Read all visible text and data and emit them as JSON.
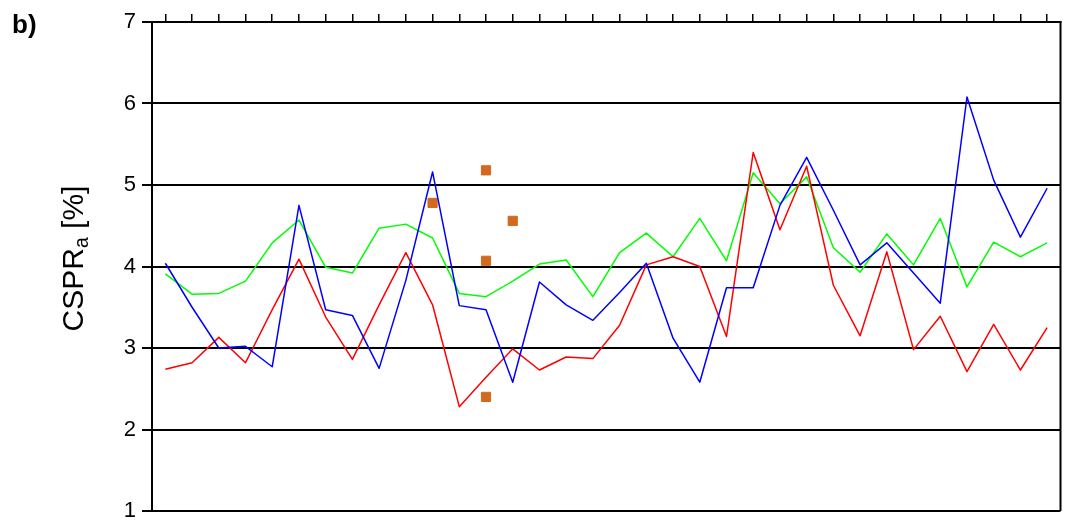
{
  "chart_data": {
    "type": "line",
    "ylabel": "CSPR$_{a}$ [%]",
    "annotations": [
      "b)"
    ],
    "categories": [
      null,
      null,
      null,
      null,
      null,
      null,
      null,
      null,
      null,
      null,
      null,
      null,
      null,
      null,
      null,
      null,
      null,
      null,
      null,
      null,
      null,
      null,
      null,
      null,
      null,
      null,
      null,
      null,
      null,
      null,
      null,
      null,
      null,
      null
    ],
    "ylim": [
      1,
      7
    ],
    "yticks": [
      1,
      2,
      3,
      4,
      5,
      6,
      7
    ],
    "grid": "y",
    "tick_labels": "y",
    "legend": false,
    "marker": "none",
    "line_style": "solid",
    "series": [
      {
        "color": "#0000ff",
        "values": [
          4.04,
          3.5,
          3.0,
          3.02,
          2.77,
          4.75,
          3.47,
          3.4,
          2.75,
          3.83,
          5.16,
          3.52,
          3.47,
          2.58,
          3.81,
          3.53,
          3.34,
          3.68,
          4.04,
          3.12,
          2.58,
          3.74,
          3.74,
          4.75,
          5.34,
          4.69,
          4.02,
          4.29,
          3.92,
          3.55,
          6.08,
          5.06,
          4.36,
          4.96
        ]
      },
      {
        "color": "#ff0000",
        "values": [
          2.74,
          2.82,
          3.13,
          2.82,
          3.47,
          4.09,
          3.38,
          2.86,
          3.53,
          4.17,
          3.53,
          2.28,
          2.64,
          2.99,
          2.73,
          2.89,
          2.87,
          3.28,
          4.02,
          4.12,
          4.0,
          3.14,
          5.4,
          4.45,
          5.23,
          3.77,
          3.15,
          4.18,
          2.98,
          3.39,
          2.71,
          3.29,
          2.73,
          3.25
        ]
      },
      {
        "color": "#00ff00",
        "values": [
          3.91,
          3.66,
          3.67,
          3.82,
          4.29,
          4.57,
          3.99,
          3.92,
          4.47,
          4.52,
          4.35,
          3.67,
          3.63,
          3.82,
          4.03,
          4.08,
          3.63,
          4.17,
          4.41,
          4.12,
          4.59,
          4.07,
          5.15,
          4.77,
          5.1,
          4.23,
          3.93,
          4.4,
          4.02,
          4.59,
          3.75,
          4.3,
          4.12,
          4.29
        ]
      },
      {
        "type": "scatter",
        "marker": "square",
        "color": "#d2691e",
        "values": [
          null,
          null,
          null,
          null,
          null,
          null,
          null,
          null,
          null,
          null,
          4.78,
          null,
          5.18,
          4.56,
          null,
          null,
          null,
          null,
          null,
          null,
          null,
          null,
          null,
          null,
          null,
          null,
          null,
          null,
          null,
          null,
          null,
          null,
          null,
          null
        ]
      },
      {
        "type": "scatter",
        "marker": "square",
        "color": "#d2691e",
        "values": [
          null,
          null,
          null,
          null,
          null,
          null,
          null,
          null,
          null,
          null,
          null,
          null,
          4.07,
          null,
          null,
          null,
          null,
          null,
          null,
          null,
          null,
          null,
          null,
          null,
          null,
          null,
          null,
          null,
          null,
          null,
          null,
          null,
          null,
          null
        ]
      },
      {
        "type": "scatter",
        "marker": "square",
        "color": "#d2691e",
        "values": [
          null,
          null,
          null,
          null,
          null,
          null,
          null,
          null,
          null,
          null,
          null,
          null,
          2.4,
          null,
          null,
          null,
          null,
          null,
          null,
          null,
          null,
          null,
          null,
          null,
          null,
          null,
          null,
          null,
          null,
          null,
          null,
          null,
          null,
          null
        ]
      }
    ]
  }
}
